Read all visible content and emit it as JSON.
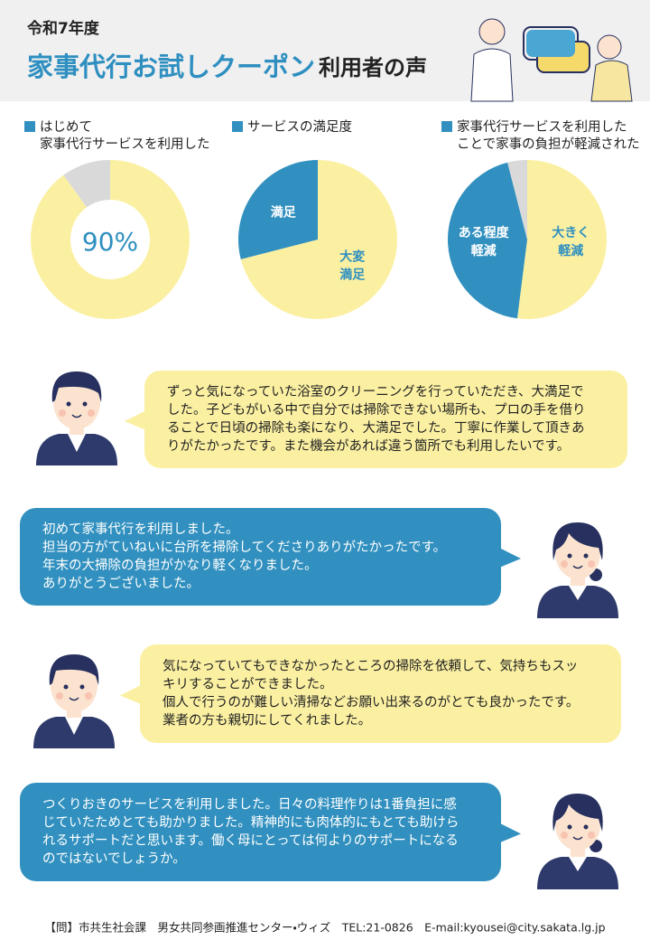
{
  "header": {
    "year": "令和7年度",
    "title_main": "家事代行お試しクーポン",
    "title_sub": "利用者の声"
  },
  "chart_data": [
    {
      "type": "pie",
      "donut": true,
      "title": "はじめて\n家事代行サービスを利用した",
      "categories": [
        null,
        null
      ],
      "values": [
        90,
        10
      ],
      "value_labels": [
        "90%",
        null
      ],
      "colors": [
        "#fbf0a2",
        "#d9d9d9"
      ]
    },
    {
      "type": "pie",
      "donut": false,
      "title": "サービスの満足度",
      "categories": [
        "大変\n満足",
        "満足"
      ],
      "values": [
        71,
        29
      ],
      "colors": [
        "#fbf0a2",
        "#3190bf"
      ]
    },
    {
      "type": "pie",
      "donut": false,
      "title": "家事代行サービスを利用した\nことで家事の負担が軽減された",
      "categories": [
        "大きく\n軽減",
        "ある程度\n軽減",
        null
      ],
      "values": [
        52,
        44,
        4
      ],
      "colors": [
        "#fbf0a2",
        "#3190bf",
        "#d9d9d9"
      ]
    }
  ],
  "testimonials": [
    {
      "lines": [
        "ずっと気になっていた浴室のクリーニングを行っていただき、大満足で",
        "した。子どもがいる中で自分では掃除できない場所も、プロの手を借り",
        "ることで日頃の掃除も楽になり、大満足でした。丁寧に作業して頂きあ",
        "りがたかったです。また機会があれば違う箇所でも利用したいです。"
      ]
    },
    {
      "lines": [
        "初めて家事代行を利用しました。",
        "担当の方がていねいに台所を掃除してくださりありがたかったです。",
        "年末の大掃除の負担がかなり軽くなりました。",
        "ありがとうございました。"
      ]
    },
    {
      "lines": [
        "気になっていてもできなかったところの掃除を依頼して、気持ちもスッ",
        "キリすることができました。",
        "個人で行うのが難しい清掃などお願い出来るのがとても良かったです。",
        "業者の方も親切にしてくれました。"
      ]
    },
    {
      "lines": [
        "つくりおきのサービスを利用しました。日々の料理作りは1番負担に感",
        "じていたためとても助かりました。精神的にも肉体的にもとても助けら",
        "れるサポートだと思います。働く母にとっては何よりのサポートになる",
        "のではないでしょうか。"
      ]
    }
  ],
  "footer": {
    "contact": "【問】市共生社会課　男女共同参画推進センター・ウィズ　TEL:21-0826　E-mail:kyousei@city.sakata.lg.jp"
  }
}
